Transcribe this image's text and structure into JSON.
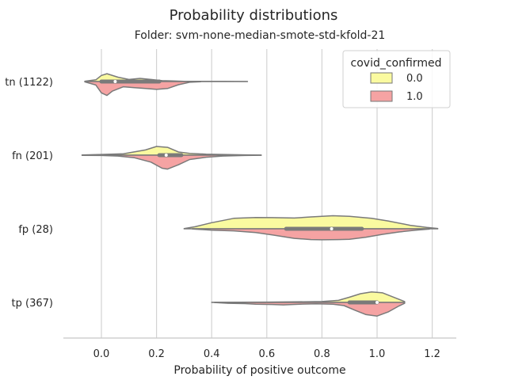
{
  "chart_data": {
    "type": "violin",
    "title": "Probability distributions",
    "subtitle": "Folder: svm-none-median-smote-std-kfold-21",
    "xlabel": "Probability of positive outcome",
    "xlim": [
      -0.14,
      1.28
    ],
    "xticks": [
      0.0,
      0.2,
      0.4,
      0.6,
      0.8,
      1.0,
      1.2
    ],
    "xtick_labels": [
      "0.0",
      "0.2",
      "0.4",
      "0.6",
      "0.8",
      "1.0",
      "1.2"
    ],
    "categories": [
      "tn (1122)",
      "fn (201)",
      "fp (28)",
      "tp (367)"
    ],
    "grid": "vertical",
    "legend": {
      "title": "covid_confirmed",
      "position": "top-right",
      "entries": [
        {
          "label": "0.0",
          "color": "#fafaa0"
        },
        {
          "label": "1.0",
          "color": "#f5a3a3"
        }
      ]
    },
    "split": true,
    "violins": [
      {
        "category": "tn (1122)",
        "half_0": [
          [
            -0.06,
            0.02
          ],
          [
            -0.02,
            0.1
          ],
          [
            0.0,
            0.35
          ],
          [
            0.02,
            0.45
          ],
          [
            0.06,
            0.25
          ],
          [
            0.1,
            0.12
          ],
          [
            0.14,
            0.18
          ],
          [
            0.18,
            0.12
          ],
          [
            0.22,
            0.05
          ],
          [
            0.26,
            0.03
          ],
          [
            0.3,
            0.015
          ],
          [
            0.36,
            0.01
          ],
          [
            0.44,
            0.01
          ],
          [
            0.53,
            0.005
          ]
        ],
        "half_1": [
          [
            -0.06,
            0.02
          ],
          [
            -0.02,
            0.2
          ],
          [
            0.0,
            0.65
          ],
          [
            0.02,
            0.8
          ],
          [
            0.04,
            0.55
          ],
          [
            0.08,
            0.3
          ],
          [
            0.12,
            0.35
          ],
          [
            0.16,
            0.4
          ],
          [
            0.2,
            0.45
          ],
          [
            0.24,
            0.4
          ],
          [
            0.28,
            0.18
          ],
          [
            0.32,
            0.04
          ],
          [
            0.36,
            0.01
          ]
        ],
        "box_0": {
          "q1": 0.0,
          "median": 0.05,
          "q3": 0.21
        },
        "box_1": {
          "q1": 0.0,
          "median": 0.05,
          "q3": 0.21
        }
      },
      {
        "category": "fn (201)",
        "half_0": [
          [
            -0.07,
            0.01
          ],
          [
            0.0,
            0.04
          ],
          [
            0.08,
            0.08
          ],
          [
            0.16,
            0.3
          ],
          [
            0.2,
            0.5
          ],
          [
            0.24,
            0.45
          ],
          [
            0.28,
            0.18
          ],
          [
            0.32,
            0.1
          ],
          [
            0.38,
            0.06
          ],
          [
            0.44,
            0.04
          ],
          [
            0.52,
            0.02
          ],
          [
            0.58,
            0.005
          ]
        ],
        "half_1": [
          [
            -0.07,
            0.01
          ],
          [
            0.0,
            0.02
          ],
          [
            0.06,
            0.05
          ],
          [
            0.12,
            0.15
          ],
          [
            0.18,
            0.4
          ],
          [
            0.22,
            0.75
          ],
          [
            0.24,
            0.8
          ],
          [
            0.28,
            0.55
          ],
          [
            0.32,
            0.25
          ],
          [
            0.38,
            0.12
          ],
          [
            0.44,
            0.05
          ],
          [
            0.52,
            0.02
          ],
          [
            0.58,
            0.005
          ]
        ],
        "box_0": {
          "q1": 0.21,
          "median": 0.235,
          "q3": 0.29
        },
        "box_1": {
          "q1": 0.21,
          "median": 0.235,
          "q3": 0.29
        }
      },
      {
        "category": "fp (28)",
        "half_0": [
          [
            0.3,
            0.01
          ],
          [
            0.34,
            0.12
          ],
          [
            0.4,
            0.35
          ],
          [
            0.48,
            0.6
          ],
          [
            0.56,
            0.65
          ],
          [
            0.62,
            0.64
          ],
          [
            0.7,
            0.62
          ],
          [
            0.76,
            0.68
          ],
          [
            0.84,
            0.75
          ],
          [
            0.9,
            0.72
          ],
          [
            0.98,
            0.6
          ],
          [
            1.04,
            0.45
          ],
          [
            1.12,
            0.2
          ],
          [
            1.18,
            0.08
          ],
          [
            1.22,
            0.02
          ]
        ],
        "half_1": [
          [
            0.33,
            0.01
          ],
          [
            0.4,
            0.08
          ],
          [
            0.48,
            0.12
          ],
          [
            0.56,
            0.22
          ],
          [
            0.62,
            0.35
          ],
          [
            0.7,
            0.55
          ],
          [
            0.76,
            0.62
          ],
          [
            0.8,
            0.63
          ],
          [
            0.86,
            0.62
          ],
          [
            0.9,
            0.6
          ],
          [
            0.96,
            0.48
          ],
          [
            1.02,
            0.32
          ],
          [
            1.08,
            0.18
          ],
          [
            1.14,
            0.08
          ],
          [
            1.19,
            0.02
          ]
        ],
        "box_0": {
          "q1": 0.67,
          "median": 0.835,
          "q3": 0.945
        },
        "box_1": {
          "q1": 0.67,
          "median": 0.835,
          "q3": 0.945
        }
      },
      {
        "category": "tp (367)",
        "half_0": [
          [
            0.4,
            0.005
          ],
          [
            0.5,
            0.01
          ],
          [
            0.6,
            0.02
          ],
          [
            0.7,
            0.03
          ],
          [
            0.8,
            0.05
          ],
          [
            0.86,
            0.12
          ],
          [
            0.9,
            0.3
          ],
          [
            0.94,
            0.5
          ],
          [
            0.98,
            0.6
          ],
          [
            1.02,
            0.55
          ],
          [
            1.06,
            0.3
          ],
          [
            1.1,
            0.05
          ]
        ],
        "half_1": [
          [
            0.41,
            0.005
          ],
          [
            0.46,
            0.05
          ],
          [
            0.52,
            0.07
          ],
          [
            0.56,
            0.1
          ],
          [
            0.62,
            0.12
          ],
          [
            0.66,
            0.14
          ],
          [
            0.72,
            0.1
          ],
          [
            0.78,
            0.08
          ],
          [
            0.84,
            0.1
          ],
          [
            0.88,
            0.18
          ],
          [
            0.92,
            0.45
          ],
          [
            0.96,
            0.7
          ],
          [
            1.0,
            0.78
          ],
          [
            1.04,
            0.55
          ],
          [
            1.08,
            0.2
          ],
          [
            1.1,
            0.05
          ]
        ],
        "box_0": {
          "q1": 0.9,
          "median": 1.0,
          "q3": 1.0
        },
        "box_1": {
          "q1": 0.9,
          "median": 1.0,
          "q3": 1.0
        }
      }
    ]
  }
}
